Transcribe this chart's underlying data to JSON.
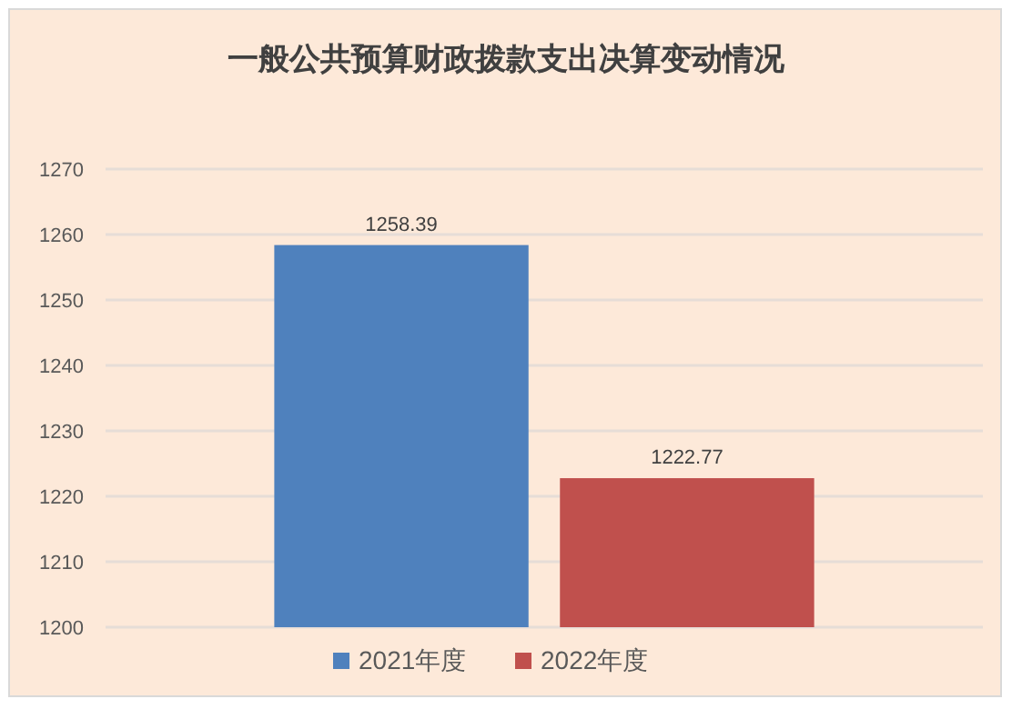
{
  "chart_data": {
    "type": "bar",
    "title": "一般公共预算财政拨款支出决算变动情况",
    "categories": [
      null
    ],
    "series": [
      {
        "name": "2021年度",
        "color": "#4f81bd",
        "values": [
          1258.39
        ]
      },
      {
        "name": "2022年度",
        "color": "#c0504d",
        "values": [
          1222.77
        ]
      }
    ],
    "ylim": [
      1200,
      1270
    ],
    "yticks": [
      1200,
      1210,
      1220,
      1230,
      1240,
      1250,
      1260,
      1270
    ],
    "grid": "y",
    "legend": "bottom",
    "data_labels": true
  }
}
